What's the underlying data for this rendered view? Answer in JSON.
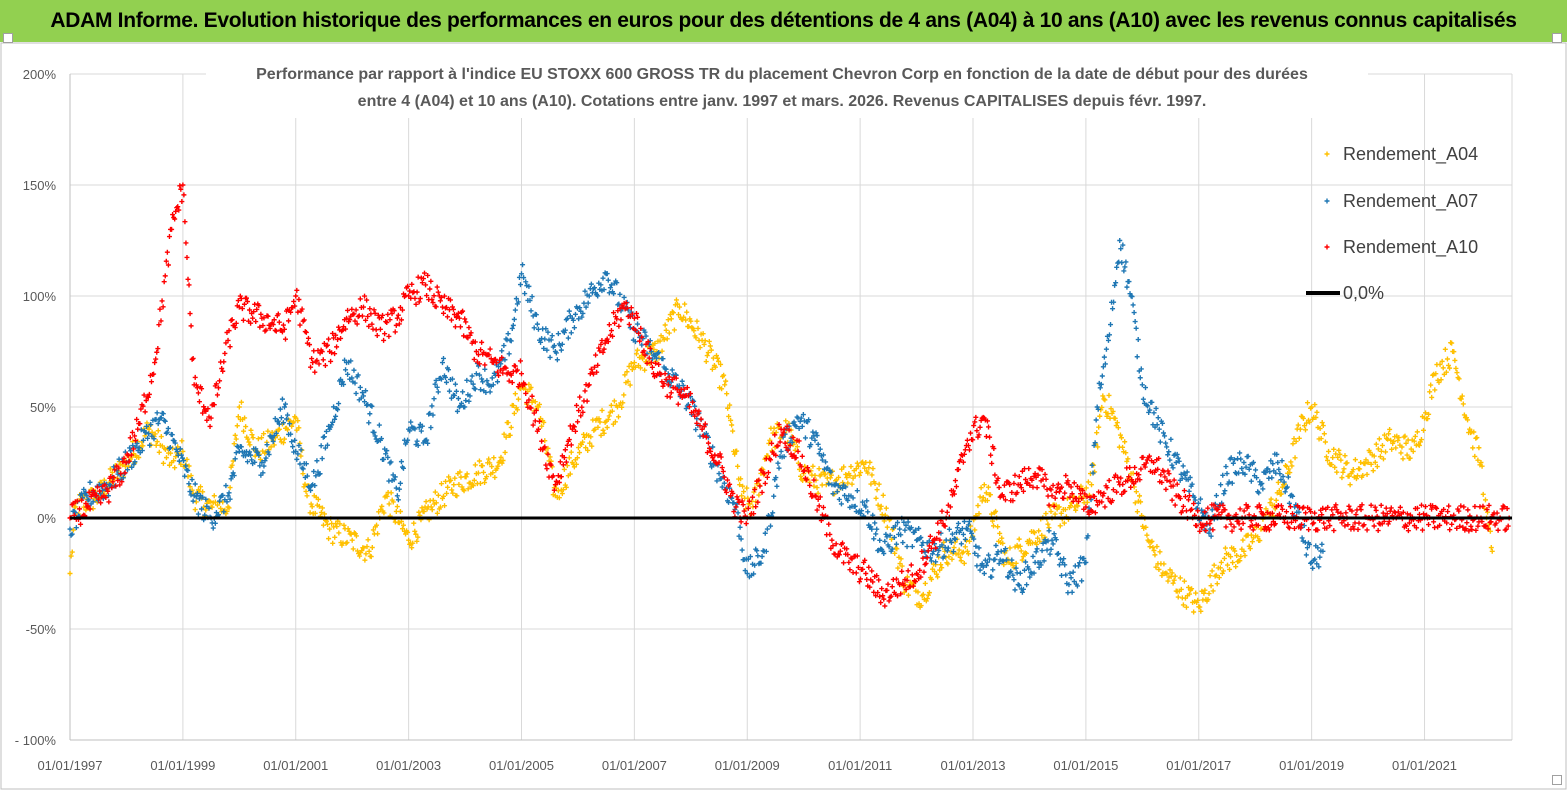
{
  "banner": {
    "title": "ADAM Informe. Evolution historique des performances en euros pour des détentions de 4 ans (A04) à 10 ans (A10) avec les revenus connus capitalisés"
  },
  "chart_data": {
    "type": "scatter",
    "title_line1": "Performance par rapport à l'indice EU STOXX 600 GROSS TR  du placement Chevron Corp en fonction de la date de début pour des durées",
    "title_line2": "entre 4 (A04) et 10 ans (A10). Cotations entre janv. 1997 et mars. 2026. Revenus CAPITALISES depuis févr. 1997.",
    "x_ticks": [
      "01/01/1997",
      "01/01/1999",
      "01/01/2001",
      "01/01/2003",
      "01/01/2005",
      "01/01/2007",
      "01/01/2009",
      "01/01/2011",
      "01/01/2013",
      "01/01/2015",
      "01/01/2017",
      "01/01/2019",
      "01/01/2021"
    ],
    "xlim": [
      1997.0,
      2022.55
    ],
    "y_ticks": [
      "200%",
      "150%",
      "100%",
      "50%",
      "0%",
      "-50%",
      "- 100%"
    ],
    "ylim": [
      -100,
      200
    ],
    "grid": true,
    "legend_position": "right",
    "legend": [
      "Rendement_A04",
      "Rendement_A07",
      "Rendement_A10",
      "0,0%"
    ],
    "colors": {
      "A04": "#ffc000",
      "A07": "#1f77b4",
      "A10": "#ff0000",
      "zero": "#000000"
    },
    "series": [
      {
        "name": "Rendement_A04",
        "x": [
          1997.0,
          1997.1,
          1997.5,
          1998.0,
          1998.4,
          1998.8,
          1999.0,
          1999.2,
          1999.5,
          1999.8,
          2000.0,
          2000.3,
          2000.6,
          2001.0,
          2001.2,
          2001.6,
          2002.0,
          2002.3,
          2002.6,
          2003.0,
          2003.4,
          2003.8,
          2004.2,
          2004.6,
          2005.0,
          2005.3,
          2005.6,
          2005.9,
          2006.3,
          2006.7,
          2007.0,
          2007.4,
          2007.8,
          2008.2,
          2008.6,
          2008.9,
          2009.1,
          2009.4,
          2009.7,
          2010.0,
          2010.4,
          2010.8,
          2011.1,
          2011.5,
          2011.8,
          2012.1,
          2012.5,
          2012.9,
          2013.2,
          2013.6,
          2014.0,
          2014.4,
          2014.8,
          2015.1,
          2015.3,
          2015.5,
          2015.8,
          2016.1,
          2016.4,
          2016.8,
          2017.0,
          2017.4,
          2017.8,
          2018.1,
          2018.5,
          2018.8,
          2019.0,
          2019.3,
          2019.7,
          2020.0,
          2020.4,
          2020.8,
          2021.0,
          2021.2,
          2021.5,
          2021.8,
          2022.0,
          2022.1,
          2022.2
        ],
        "y": [
          -25,
          5,
          10,
          25,
          40,
          25,
          30,
          10,
          5,
          5,
          50,
          30,
          35,
          45,
          10,
          -5,
          -10,
          -15,
          10,
          -10,
          5,
          15,
          20,
          25,
          60,
          50,
          10,
          25,
          40,
          50,
          70,
          75,
          95,
          80,
          60,
          10,
          5,
          35,
          40,
          20,
          15,
          20,
          25,
          0,
          -30,
          -35,
          -15,
          -15,
          15,
          -20,
          -10,
          0,
          5,
          15,
          55,
          45,
          20,
          -10,
          -25,
          -35,
          -40,
          -20,
          -15,
          -5,
          15,
          40,
          50,
          30,
          20,
          25,
          35,
          30,
          45,
          65,
          75,
          40,
          25,
          0,
          -15
        ]
      },
      {
        "name": "Rendement_A07",
        "x": [
          1997.0,
          1997.3,
          1997.7,
          1998.0,
          1998.3,
          1998.6,
          1998.9,
          1999.2,
          1999.5,
          1999.8,
          2000.0,
          2000.4,
          2000.8,
          2001.0,
          2001.3,
          2001.6,
          2001.9,
          2002.2,
          2002.5,
          2002.8,
          2003.0,
          2003.3,
          2003.6,
          2003.9,
          2004.2,
          2004.5,
          2004.8,
          2005.0,
          2005.3,
          2005.6,
          2005.9,
          2006.2,
          2006.5,
          2006.8,
          2007.0,
          2007.3,
          2007.6,
          2007.9,
          2008.2,
          2008.5,
          2008.8,
          2009.0,
          2009.3,
          2009.6,
          2009.9,
          2010.2,
          2010.5,
          2010.8,
          2011.1,
          2011.4,
          2011.7,
          2012.0,
          2012.3,
          2012.6,
          2012.9,
          2013.2,
          2013.5,
          2013.8,
          2014.1,
          2014.4,
          2014.7,
          2015.0,
          2015.2,
          2015.4,
          2015.6,
          2015.8,
          2016.0,
          2016.3,
          2016.6,
          2016.9,
          2017.2,
          2017.5,
          2017.8,
          2018.1,
          2018.4,
          2018.7,
          2019.0,
          2019.2
        ],
        "y": [
          -5,
          10,
          15,
          25,
          35,
          45,
          30,
          10,
          0,
          10,
          30,
          25,
          50,
          30,
          15,
          40,
          70,
          55,
          35,
          10,
          40,
          35,
          70,
          50,
          65,
          60,
          80,
          110,
          85,
          75,
          90,
          100,
          110,
          95,
          85,
          75,
          65,
          55,
          40,
          20,
          5,
          -25,
          -15,
          30,
          45,
          35,
          15,
          10,
          5,
          -15,
          -5,
          -10,
          -15,
          -10,
          -5,
          -25,
          -15,
          -30,
          -20,
          -10,
          -30,
          -20,
          50,
          80,
          125,
          100,
          60,
          40,
          25,
          10,
          -5,
          20,
          25,
          15,
          25,
          5,
          -20,
          -15
        ]
      },
      {
        "name": "Rendement_A10",
        "x": [
          1997.0,
          1997.3,
          1997.6,
          1997.9,
          1998.2,
          1998.5,
          1998.8,
          1999.0,
          1999.2,
          1999.5,
          1999.8,
          2000.0,
          2000.4,
          2000.8,
          2001.0,
          2001.3,
          2001.6,
          2001.9,
          2002.2,
          2002.5,
          2002.8,
          2003.0,
          2003.3,
          2003.6,
          2003.9,
          2004.2,
          2004.5,
          2004.8,
          2005.0,
          2005.3,
          2005.6,
          2005.9,
          2006.2,
          2006.5,
          2006.8,
          2007.0,
          2007.3,
          2007.6,
          2007.9,
          2008.2,
          2008.5,
          2008.8,
          2009.0,
          2009.3,
          2009.6,
          2009.9,
          2010.2,
          2010.5,
          2010.8,
          2011.1,
          2011.4,
          2011.7,
          2012.0,
          2012.3,
          2012.6,
          2012.9,
          2013.2,
          2013.5,
          2013.8,
          2014.1,
          2014.4,
          2014.7,
          2015.0,
          2015.3,
          2015.6,
          2015.9,
          2016.2,
          2016.6,
          2017.0,
          2017.5,
          2018.0,
          2018.5,
          2019.0,
          2019.5,
          2020.0,
          2020.5,
          2021.0,
          2021.5,
          2022.0,
          2022.5
        ],
        "y": [
          0,
          5,
          10,
          20,
          40,
          70,
          130,
          150,
          60,
          45,
          80,
          95,
          90,
          85,
          100,
          70,
          75,
          90,
          95,
          85,
          90,
          100,
          105,
          95,
          90,
          75,
          70,
          65,
          65,
          40,
          15,
          40,
          60,
          80,
          95,
          90,
          70,
          60,
          55,
          40,
          25,
          5,
          0,
          20,
          40,
          30,
          10,
          -10,
          -20,
          -25,
          -35,
          -30,
          -25,
          -10,
          5,
          35,
          45,
          10,
          15,
          20,
          10,
          15,
          5,
          10,
          15,
          20,
          25,
          10,
          0,
          0,
          0,
          0,
          0,
          0,
          0,
          0,
          0,
          0,
          0,
          0
        ]
      }
    ]
  }
}
